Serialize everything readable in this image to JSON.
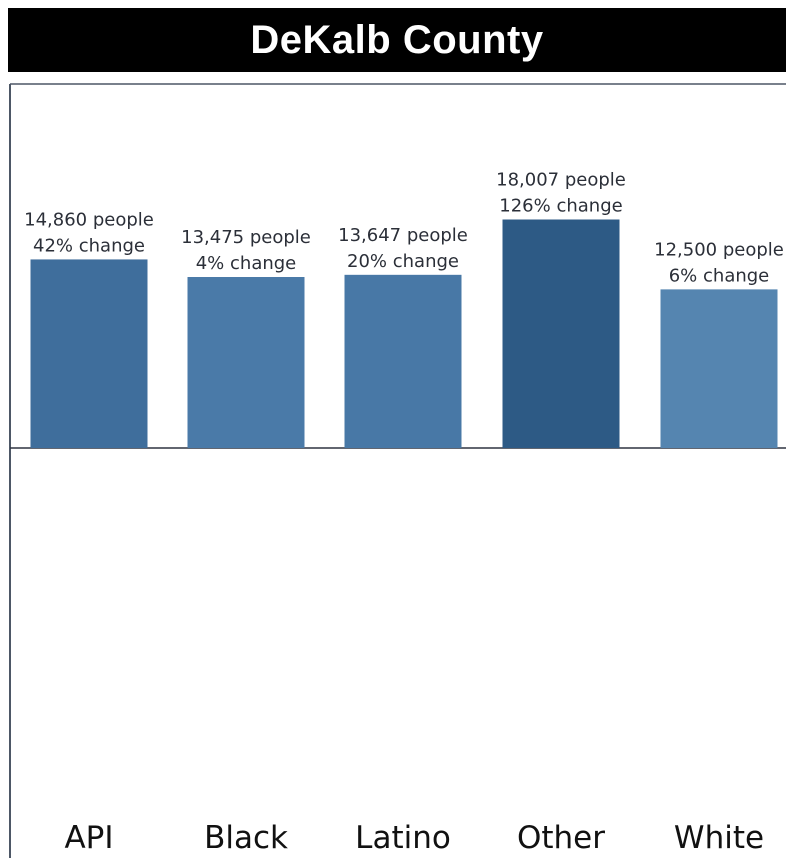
{
  "title": "DeKalb County",
  "chart_data": {
    "type": "bar",
    "title": "DeKalb County",
    "xlabel": "",
    "ylabel": "",
    "categories": [
      "API",
      "Black",
      "Latino",
      "Other",
      "White"
    ],
    "values": [
      14860,
      13475,
      13647,
      18007,
      12500
    ],
    "value_labels": [
      "14,860 people",
      "13,475 people",
      "13,647 people",
      "18,007 people",
      "12,500 people"
    ],
    "change_labels": [
      "42% change",
      "4% change",
      "20% change",
      "126% change",
      "6% change"
    ],
    "ylim": [
      0,
      29000
    ],
    "grid": false,
    "legend": "none",
    "colors": [
      "#3f6e9c",
      "#4a7aa8",
      "#4878a6",
      "#2d5a85",
      "#5585b0"
    ]
  }
}
